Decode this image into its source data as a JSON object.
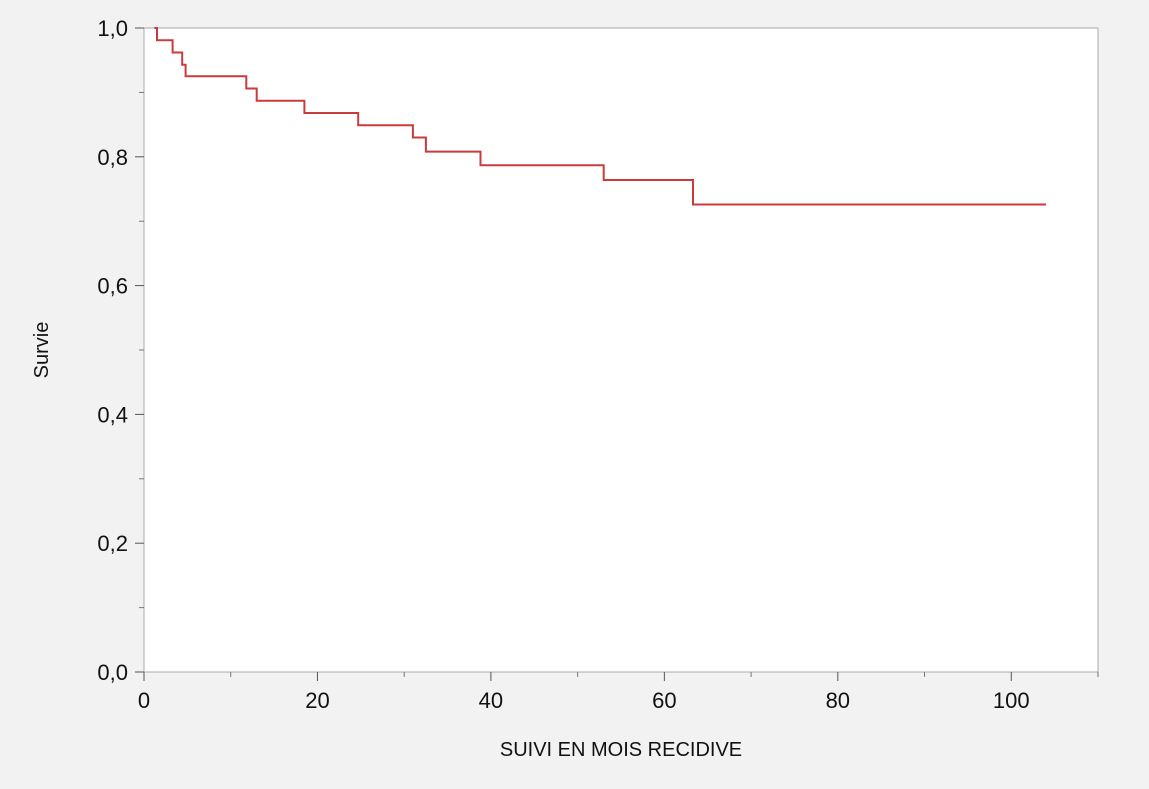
{
  "chart_data": {
    "type": "line",
    "step": true,
    "xlabel": "SUIVI EN MOIS RECIDIVE",
    "ylabel": "Survie",
    "xlim": [
      0,
      110
    ],
    "ylim": [
      0,
      1
    ],
    "x_ticks": [
      {
        "value": 0,
        "label": "0"
      },
      {
        "value": 20,
        "label": "20"
      },
      {
        "value": 40,
        "label": "40"
      },
      {
        "value": 60,
        "label": "60"
      },
      {
        "value": 80,
        "label": "80"
      },
      {
        "value": 100,
        "label": "100"
      }
    ],
    "x_minor_ticks": [
      10,
      30,
      50,
      70,
      90,
      110
    ],
    "y_ticks": [
      {
        "value": 0,
        "label": "0,0"
      },
      {
        "value": 0.2,
        "label": "0,2"
      },
      {
        "value": 0.4,
        "label": "0,4"
      },
      {
        "value": 0.6,
        "label": "0,6"
      },
      {
        "value": 0.8,
        "label": "0,8"
      },
      {
        "value": 1.0,
        "label": "1,0"
      }
    ],
    "y_minor_ticks": [
      0.1,
      0.3,
      0.5,
      0.7,
      0.9
    ],
    "grid": false,
    "series": [
      {
        "color": "#cc3b3b",
        "points": [
          [
            1.2,
            1.0
          ],
          [
            1.5,
            0.981
          ],
          [
            3.3,
            0.962
          ],
          [
            4.4,
            0.943
          ],
          [
            4.8,
            0.925
          ],
          [
            11.8,
            0.906
          ],
          [
            13.0,
            0.887
          ],
          [
            18.5,
            0.868
          ],
          [
            24.7,
            0.849
          ],
          [
            31.0,
            0.83
          ],
          [
            32.5,
            0.808
          ],
          [
            38.8,
            0.787
          ],
          [
            53.0,
            0.764
          ],
          [
            63.3,
            0.726
          ],
          [
            104.0,
            0.726
          ]
        ]
      }
    ]
  }
}
